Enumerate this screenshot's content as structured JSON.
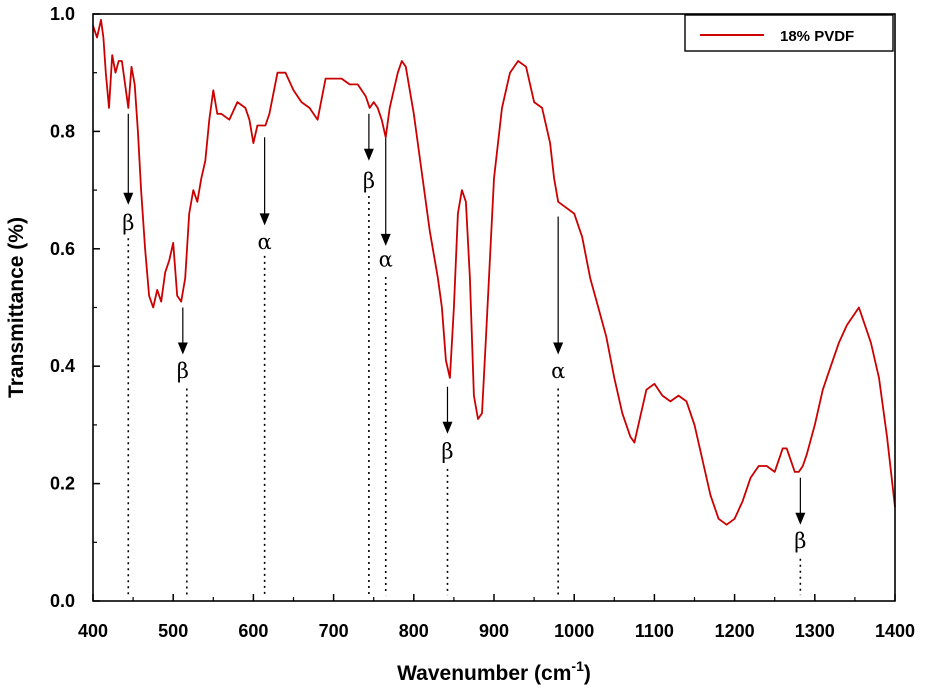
{
  "chart_data": {
    "type": "line",
    "title": "",
    "xlabel": "Wavenumber (cm",
    "xlabel_sup": "-1",
    "xlabel_suffix": ")",
    "ylabel": "Transmittance (%)",
    "xlim": [
      400,
      1400
    ],
    "ylim": [
      0.0,
      1.0
    ],
    "xticks": [
      "400",
      "500",
      "600",
      "700",
      "800",
      "900",
      "1000",
      "1100",
      "1200",
      "1300",
      "1400"
    ],
    "yticks": [
      "0.0",
      "0.2",
      "0.4",
      "0.6",
      "0.8",
      "1.0"
    ],
    "legend": {
      "position": "top-right",
      "entries": [
        "18% PVDF"
      ]
    },
    "grid": false,
    "series": [
      {
        "name": "18% PVDF",
        "color": "#cc0000",
        "x": [
          400,
          405,
          410,
          413,
          416,
          420,
          424,
          428,
          432,
          436,
          440,
          444,
          448,
          452,
          456,
          460,
          465,
          470,
          475,
          480,
          485,
          490,
          495,
          500,
          505,
          510,
          515,
          520,
          525,
          530,
          535,
          540,
          545,
          550,
          555,
          560,
          570,
          580,
          590,
          595,
          600,
          605,
          610,
          615,
          620,
          630,
          640,
          650,
          660,
          670,
          680,
          690,
          700,
          710,
          720,
          730,
          740,
          745,
          750,
          755,
          760,
          765,
          770,
          780,
          785,
          790,
          800,
          810,
          820,
          830,
          835,
          840,
          845,
          850,
          855,
          860,
          865,
          870,
          875,
          880,
          885,
          890,
          900,
          910,
          920,
          930,
          940,
          950,
          960,
          970,
          975,
          980,
          990,
          1000,
          1010,
          1020,
          1030,
          1040,
          1050,
          1060,
          1070,
          1075,
          1080,
          1090,
          1100,
          1110,
          1120,
          1130,
          1140,
          1150,
          1160,
          1170,
          1180,
          1190,
          1200,
          1210,
          1220,
          1230,
          1240,
          1250,
          1260,
          1265,
          1270,
          1275,
          1280,
          1285,
          1290,
          1300,
          1310,
          1320,
          1330,
          1340,
          1350,
          1355,
          1360,
          1370,
          1380,
          1390,
          1400
        ],
        "y": [
          0.98,
          0.96,
          0.99,
          0.96,
          0.9,
          0.84,
          0.93,
          0.9,
          0.92,
          0.92,
          0.88,
          0.84,
          0.91,
          0.88,
          0.8,
          0.7,
          0.6,
          0.52,
          0.5,
          0.53,
          0.51,
          0.56,
          0.58,
          0.61,
          0.52,
          0.51,
          0.55,
          0.66,
          0.7,
          0.68,
          0.72,
          0.75,
          0.82,
          0.87,
          0.83,
          0.83,
          0.82,
          0.85,
          0.84,
          0.82,
          0.78,
          0.81,
          0.81,
          0.81,
          0.83,
          0.9,
          0.9,
          0.87,
          0.85,
          0.84,
          0.82,
          0.89,
          0.89,
          0.89,
          0.88,
          0.88,
          0.86,
          0.84,
          0.85,
          0.84,
          0.82,
          0.79,
          0.84,
          0.9,
          0.92,
          0.91,
          0.83,
          0.73,
          0.63,
          0.55,
          0.5,
          0.41,
          0.38,
          0.5,
          0.66,
          0.7,
          0.68,
          0.55,
          0.35,
          0.31,
          0.32,
          0.45,
          0.72,
          0.84,
          0.9,
          0.92,
          0.91,
          0.85,
          0.84,
          0.78,
          0.72,
          0.68,
          0.67,
          0.66,
          0.62,
          0.55,
          0.5,
          0.45,
          0.38,
          0.32,
          0.28,
          0.27,
          0.3,
          0.36,
          0.37,
          0.35,
          0.34,
          0.35,
          0.34,
          0.3,
          0.24,
          0.18,
          0.14,
          0.13,
          0.14,
          0.17,
          0.21,
          0.23,
          0.23,
          0.22,
          0.26,
          0.26,
          0.24,
          0.22,
          0.22,
          0.23,
          0.25,
          0.3,
          0.36,
          0.4,
          0.44,
          0.47,
          0.49,
          0.5,
          0.48,
          0.44,
          0.38,
          0.28,
          0.16
        ]
      }
    ],
    "annotations": [
      {
        "label": "β",
        "x": 444,
        "arrow_from_y": 0.83,
        "arrow_to_y": 0.675,
        "label_y": 0.632,
        "dot_from_y": 0.618,
        "dot_to_y": 0.01
      },
      {
        "label": "β",
        "x": 512,
        "arrow_from_y": 0.5,
        "arrow_to_y": 0.42,
        "label_y": 0.38,
        "dot_from_y": 0.362,
        "dot_to_y": 0.01,
        "dot_x": 517
      },
      {
        "label": "α",
        "x": 614,
        "arrow_from_y": 0.79,
        "arrow_to_y": 0.64,
        "label_y": 0.6,
        "dot_from_y": 0.588,
        "dot_to_y": 0.01
      },
      {
        "label": "β",
        "x": 744,
        "arrow_from_y": 0.83,
        "arrow_to_y": 0.75,
        "label_y": 0.704,
        "dot_from_y": 0.69,
        "dot_to_y": 0.01
      },
      {
        "label": "α",
        "x": 765,
        "arrow_from_y": 0.79,
        "arrow_to_y": 0.605,
        "label_y": 0.57,
        "dot_from_y": 0.552,
        "dot_to_y": 0.01
      },
      {
        "label": "β",
        "x": 842,
        "arrow_from_y": 0.365,
        "arrow_to_y": 0.285,
        "label_y": 0.243,
        "dot_from_y": 0.225,
        "dot_to_y": 0.01
      },
      {
        "label": "α",
        "x": 980,
        "arrow_from_y": 0.655,
        "arrow_to_y": 0.42,
        "label_y": 0.38,
        "dot_from_y": 0.362,
        "dot_to_y": 0.01
      },
      {
        "label": "β",
        "x": 1282,
        "arrow_from_y": 0.21,
        "arrow_to_y": 0.13,
        "label_y": 0.09,
        "dot_from_y": 0.072,
        "dot_to_y": 0.01
      }
    ]
  }
}
